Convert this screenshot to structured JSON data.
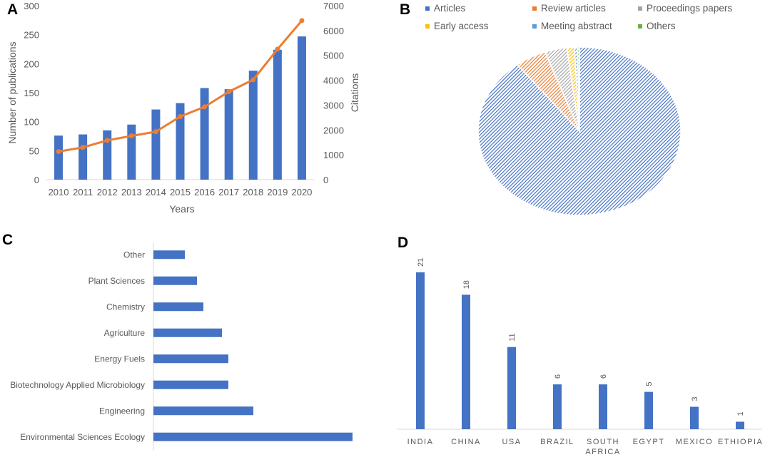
{
  "panel_labels": [
    "A",
    "B",
    "C",
    "D"
  ],
  "chart_data": [
    {
      "panel": "A",
      "type": "bar+line",
      "categories": [
        "2010",
        "2011",
        "2012",
        "2013",
        "2014",
        "2015",
        "2016",
        "2017",
        "2018",
        "2019",
        "2020"
      ],
      "series": [
        {
          "name": "Number of publications",
          "type": "bar",
          "axis": "left",
          "color": "#4472C4",
          "values": [
            76,
            78,
            85,
            95,
            121,
            132,
            158,
            156,
            188,
            224,
            247
          ]
        },
        {
          "name": "Citations",
          "type": "line",
          "axis": "right",
          "color": "#ED7D31",
          "values": [
            1130,
            1300,
            1580,
            1760,
            1930,
            2540,
            2930,
            3540,
            4020,
            5250,
            6400
          ]
        }
      ],
      "xlabel": "Years",
      "ylabel": "Number of publications",
      "y2label": "Citations",
      "ylim": [
        0,
        300
      ],
      "y2lim": [
        0,
        7000
      ],
      "yticks": [
        "0",
        "50",
        "100",
        "150",
        "200",
        "250",
        "300"
      ],
      "y2ticks": [
        "0",
        "1000",
        "2000",
        "3000",
        "4000",
        "5000",
        "6000",
        "7000"
      ]
    },
    {
      "panel": "B",
      "type": "pie",
      "legend_position": "top",
      "slices": [
        {
          "label": "Articles",
          "value": 89.5,
          "color": "#4472C4"
        },
        {
          "label": "Review articles",
          "value": 5.0,
          "color": "#ED7D31"
        },
        {
          "label": "Proceedings papers",
          "value": 3.5,
          "color": "#A5A5A5"
        },
        {
          "label": "Early access",
          "value": 1.2,
          "color": "#FFC000"
        },
        {
          "label": "Meeting abstract",
          "value": 0.5,
          "color": "#5B9BD5"
        },
        {
          "label": "Others",
          "value": 0.3,
          "color": "#70AD47"
        }
      ]
    },
    {
      "panel": "C",
      "type": "bar",
      "orientation": "horizontal",
      "categories": [
        "Other",
        "Plant Sciences",
        "Chemistry",
        "Agriculture",
        "Energy Fuels",
        "Biotechnology Applied Microbiology",
        "Engineering",
        "Environmental Sciences Ecology"
      ],
      "values": [
        44,
        61,
        70,
        96,
        105,
        105,
        140,
        279
      ],
      "color": "#4472C4"
    },
    {
      "panel": "D",
      "type": "bar",
      "categories": [
        "INDIA",
        "CHINA",
        "USA",
        "BRAZIL",
        "SOUTH AFRICA",
        "EGYPT",
        "MEXICO",
        "ETHIOPIA"
      ],
      "values": [
        21,
        18,
        11,
        6,
        6,
        5,
        3,
        1
      ],
      "data_labels": [
        "21",
        "18",
        "11",
        "6",
        "6",
        "5",
        "3",
        "1"
      ],
      "color": "#4472C4"
    }
  ]
}
